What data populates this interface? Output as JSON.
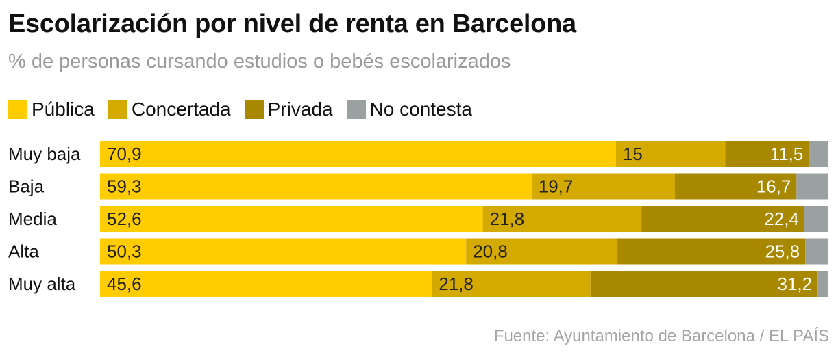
{
  "title": "Escolarización por nivel de renta en Barcelona",
  "subtitle": "% de personas cursando estudios o bebés escolarizados",
  "source": "Fuente: Ayuntamiento de Barcelona / EL PAÍS",
  "chart_data": {
    "type": "bar",
    "orientation": "horizontal",
    "stacked": true,
    "title": "Escolarización por nivel de renta en Barcelona",
    "subtitle": "% de personas cursando estudios o bebés escolarizados",
    "xlabel": "",
    "ylabel": "",
    "xlim": [
      0,
      100
    ],
    "legend_position": "top-left",
    "categories": [
      "Muy baja",
      "Baja",
      "Media",
      "Alta",
      "Muy alta"
    ],
    "series": [
      {
        "name": "Pública",
        "color": "#FFCC00",
        "values": [
          70.9,
          59.3,
          52.6,
          50.3,
          45.6
        ],
        "labels": [
          "70,9",
          "59,3",
          "52,6",
          "50,3",
          "45,6"
        ],
        "label_align": "start",
        "label_color": "#222222"
      },
      {
        "name": "Concertada",
        "color": "#D4A900",
        "values": [
          15,
          19.7,
          21.8,
          20.8,
          21.8
        ],
        "labels": [
          "15",
          "19,7",
          "21,8",
          "20,8",
          "21,8"
        ],
        "label_align": "start",
        "label_color": "#222222"
      },
      {
        "name": "Privada",
        "color": "#A88800",
        "values": [
          11.5,
          16.7,
          22.4,
          25.8,
          31.2
        ],
        "labels": [
          "11,5",
          "16,7",
          "22,4",
          "25,8",
          "31,2"
        ],
        "label_align": "end",
        "label_color": "#ffffff"
      },
      {
        "name": "No contesta",
        "color": "#9BA0A0",
        "values": [
          2.6,
          4.3,
          3.2,
          3.1,
          1.4
        ],
        "labels": [
          null,
          null,
          null,
          null,
          null
        ],
        "label_align": "none",
        "label_color": "#ffffff"
      }
    ]
  }
}
